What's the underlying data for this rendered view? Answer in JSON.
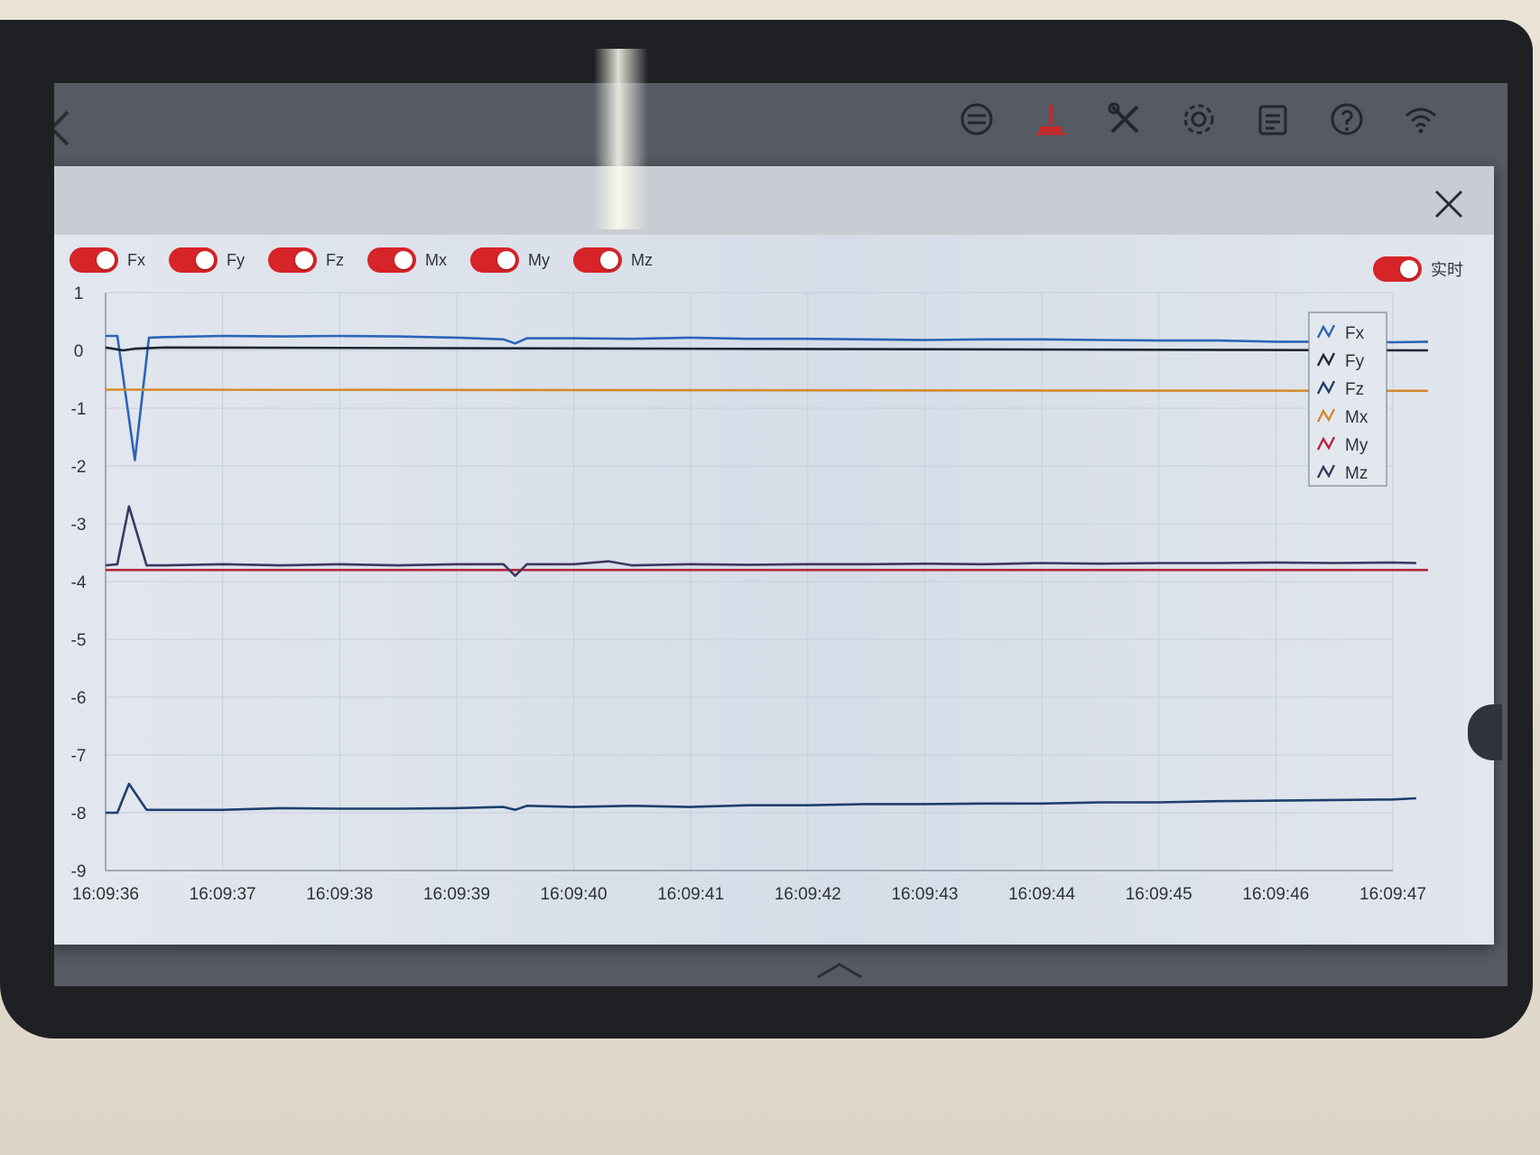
{
  "toolbar": {
    "icons": [
      "switch-icon",
      "robot-arm-icon",
      "tools-icon",
      "settings-icon",
      "log-icon",
      "help-icon",
      "wifi-icon"
    ]
  },
  "toggles": [
    {
      "label": "Fx",
      "on": true
    },
    {
      "label": "Fy",
      "on": true
    },
    {
      "label": "Fz",
      "on": true
    },
    {
      "label": "Mx",
      "on": true
    },
    {
      "label": "My",
      "on": true
    },
    {
      "label": "Mz",
      "on": true
    }
  ],
  "realtime": {
    "label": "实时",
    "on": true
  },
  "colors": {
    "toggle_on": "#d62428",
    "accent": "#d62428"
  },
  "chart_data": {
    "type": "line",
    "x_labels": [
      "16:09:36",
      "16:09:37",
      "16:09:38",
      "16:09:39",
      "16:09:40",
      "16:09:41",
      "16:09:42",
      "16:09:43",
      "16:09:44",
      "16:09:45",
      "16:09:46",
      "16:09:47"
    ],
    "y_ticks": [
      "1",
      "0",
      "-1",
      "-2",
      "-3",
      "-4",
      "-5",
      "-6",
      "-7",
      "-8",
      "-9"
    ],
    "ylim": [
      -9,
      1
    ],
    "xlim": [
      0,
      11
    ],
    "grid": true,
    "legend_position": "top-right",
    "series": [
      {
        "name": "Fx",
        "color": "#2b64b8",
        "x": [
          0,
          0.1,
          0.25,
          0.37,
          0.5,
          1,
          1.5,
          2,
          2.5,
          3,
          3.4,
          3.5,
          3.6,
          4,
          4.5,
          5,
          5.5,
          6,
          6.5,
          7,
          7.5,
          8,
          8.5,
          9,
          9.5,
          10,
          10.5,
          11,
          11.3
        ],
        "y": [
          0.25,
          0.25,
          -1.9,
          0.22,
          0.23,
          0.25,
          0.24,
          0.25,
          0.24,
          0.22,
          0.19,
          0.12,
          0.21,
          0.21,
          0.2,
          0.22,
          0.2,
          0.2,
          0.19,
          0.18,
          0.19,
          0.19,
          0.18,
          0.17,
          0.17,
          0.15,
          0.15,
          0.14,
          0.15
        ]
      },
      {
        "name": "Fy",
        "color": "#1c2533",
        "x": [
          0,
          0.15,
          0.25,
          0.5,
          11.3
        ],
        "y": [
          0.05,
          0.0,
          0.03,
          0.05,
          0.0
        ]
      },
      {
        "name": "Fz",
        "color": "#1f3f6d",
        "x": [
          0,
          0.1,
          0.2,
          0.35,
          0.5,
          1,
          1.5,
          2,
          2.5,
          3,
          3.4,
          3.5,
          3.6,
          4,
          4.5,
          5,
          5.5,
          6,
          6.5,
          7,
          7.5,
          8,
          8.5,
          9,
          9.5,
          10,
          10.5,
          11,
          11.2
        ],
        "y": [
          -8.0,
          -8.0,
          -7.5,
          -7.95,
          -7.95,
          -7.95,
          -7.92,
          -7.93,
          -7.93,
          -7.92,
          -7.9,
          -7.95,
          -7.88,
          -7.9,
          -7.88,
          -7.9,
          -7.87,
          -7.87,
          -7.85,
          -7.85,
          -7.84,
          -7.84,
          -7.82,
          -7.82,
          -7.8,
          -7.79,
          -7.78,
          -7.77,
          -7.75
        ]
      },
      {
        "name": "Mx",
        "color": "#d28a2c",
        "x": [
          0,
          11.3
        ],
        "y": [
          -0.68,
          -0.7
        ]
      },
      {
        "name": "My",
        "color": "#b3243a",
        "x": [
          0,
          11.3
        ],
        "y": [
          -3.8,
          -3.8
        ]
      },
      {
        "name": "Mz",
        "color": "#3d3660",
        "x": [
          0,
          0.1,
          0.2,
          0.35,
          0.5,
          1,
          1.5,
          2,
          2.5,
          3,
          3.4,
          3.5,
          3.6,
          4,
          4.3,
          4.5,
          5,
          5.5,
          6,
          6.5,
          7,
          7.5,
          8,
          8.5,
          9,
          9.5,
          10,
          10.5,
          11,
          11.2
        ],
        "y": [
          -3.72,
          -3.7,
          -2.7,
          -3.72,
          -3.72,
          -3.7,
          -3.72,
          -3.7,
          -3.72,
          -3.7,
          -3.7,
          -3.9,
          -3.7,
          -3.7,
          -3.65,
          -3.72,
          -3.7,
          -3.71,
          -3.7,
          -3.7,
          -3.69,
          -3.7,
          -3.68,
          -3.69,
          -3.68,
          -3.68,
          -3.67,
          -3.68,
          -3.67,
          -3.68
        ]
      }
    ]
  }
}
